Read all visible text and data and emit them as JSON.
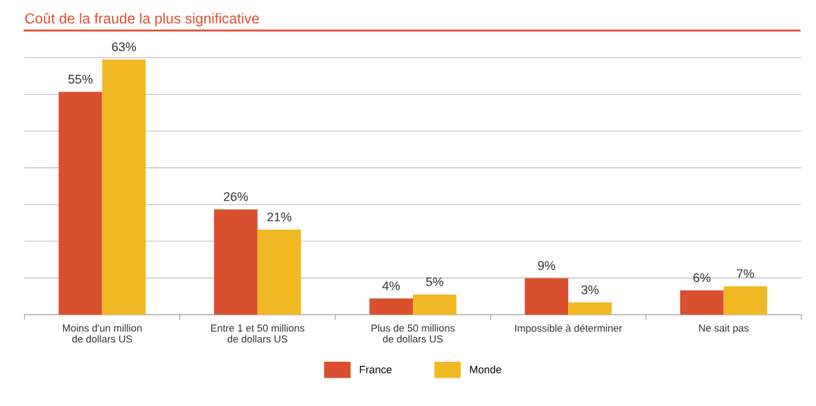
{
  "chart_data": {
    "type": "bar",
    "title": "Coût de la fraude la plus significative",
    "categories": [
      "Moins d'un million\nde dollars US",
      "Entre 1 et 50 millions\nde dollars US",
      "Plus de 50 millions\nde dollars US",
      "Impossible à déterminer",
      "Ne sait pas"
    ],
    "series": [
      {
        "name": "France",
        "color": "#d9502e",
        "values": [
          55,
          26,
          4,
          9,
          6
        ],
        "value_labels": [
          "55%",
          "26%",
          "4%",
          "9%",
          "6%"
        ]
      },
      {
        "name": "Monde",
        "color": "#f0b823",
        "values": [
          63,
          21,
          5,
          3,
          7
        ],
        "value_labels": [
          "63%",
          "21%",
          "5%",
          "3%",
          "7%"
        ]
      }
    ],
    "grid": "y",
    "legend": "bottom"
  }
}
